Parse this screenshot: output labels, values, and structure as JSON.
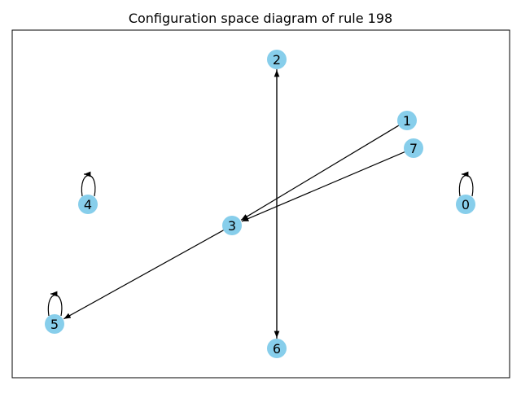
{
  "title": "Configuration space diagram of rule 198",
  "node_color": "#87CEEB",
  "nodes": [
    {
      "id": "0",
      "label": "0"
    },
    {
      "id": "1",
      "label": "1"
    },
    {
      "id": "2",
      "label": "2"
    },
    {
      "id": "3",
      "label": "3"
    },
    {
      "id": "4",
      "label": "4"
    },
    {
      "id": "5",
      "label": "5"
    },
    {
      "id": "6",
      "label": "6"
    },
    {
      "id": "7",
      "label": "7"
    }
  ],
  "edges": [
    {
      "from": "0",
      "to": "0"
    },
    {
      "from": "4",
      "to": "4"
    },
    {
      "from": "5",
      "to": "5"
    },
    {
      "from": "1",
      "to": "3"
    },
    {
      "from": "7",
      "to": "3"
    },
    {
      "from": "3",
      "to": "5"
    },
    {
      "from": "2",
      "to": "6"
    },
    {
      "from": "6",
      "to": "2"
    }
  ]
}
